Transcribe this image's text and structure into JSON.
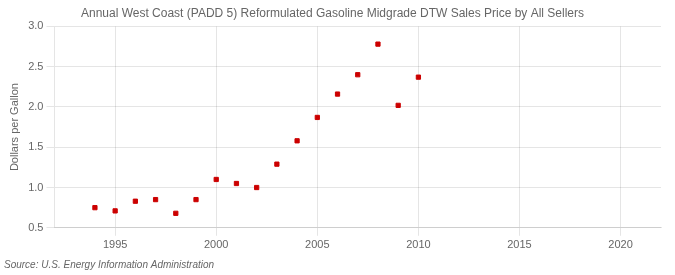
{
  "chart_data": {
    "type": "scatter",
    "title": "Annual West Coast (PADD 5) Reformulated Gasoline Midgrade DTW Sales Price by All Sellers",
    "ylabel": "Dollars per Gallon",
    "annotations": [
      "Source: U.S. Energy Information Administration"
    ],
    "x": [
      1994,
      1995,
      1996,
      1997,
      1998,
      1999,
      2000,
      2001,
      2002,
      2003,
      2004,
      2005,
      2006,
      2007,
      2008,
      2009,
      2010
    ],
    "values": [
      0.75,
      0.71,
      0.83,
      0.85,
      0.68,
      0.85,
      1.1,
      1.05,
      1.0,
      1.29,
      1.58,
      1.87,
      2.16,
      2.4,
      2.78,
      2.02,
      2.37
    ],
    "color": "#cc0000",
    "marker": "square",
    "xlim": [
      1992,
      2022
    ],
    "xticks": [
      1995,
      2000,
      2005,
      2010,
      2015,
      2020
    ],
    "ylim": [
      0.5,
      3.0
    ],
    "yticks": [
      0.5,
      {
        "value": 1.0,
        "label": "1.0"
      },
      1.5,
      {
        "value": 2.0,
        "label": "2.0"
      },
      2.5,
      {
        "value": 3.0,
        "label": "3.0"
      }
    ],
    "grid": true
  }
}
